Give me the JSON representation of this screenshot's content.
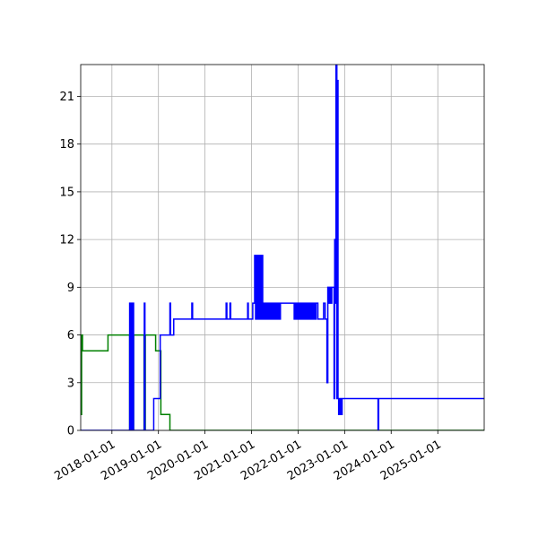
{
  "chart_data": {
    "type": "line",
    "title": "",
    "xlabel": "",
    "ylabel": "",
    "x_scale": "date",
    "xlim": [
      "2017-05-01",
      "2025-12-31"
    ],
    "ylim": [
      0,
      23
    ],
    "x_ticks": [
      "2018-01-01",
      "2019-01-01",
      "2020-01-01",
      "2021-01-01",
      "2022-01-01",
      "2023-01-01",
      "2024-01-01",
      "2025-01-01"
    ],
    "x_tick_labels": [
      "2018-01-01",
      "2019-01-01",
      "2020-01-01",
      "2021-01-01",
      "2022-01-01",
      "2023-01-01",
      "2024-01-01",
      "2025-01-01"
    ],
    "y_ticks": [
      0,
      3,
      6,
      9,
      12,
      15,
      18,
      21
    ],
    "y_tick_labels": [
      "0",
      "3",
      "6",
      "9",
      "12",
      "15",
      "18",
      "21"
    ],
    "grid": true,
    "legend": "none",
    "series": [
      {
        "color": "#008000",
        "step": true,
        "points": [
          [
            "2017-05-01",
            1
          ],
          [
            "2017-05-08",
            6
          ],
          [
            "2017-05-15",
            5
          ],
          [
            "2017-12-01",
            6
          ],
          [
            "2018-05-20",
            0
          ],
          [
            "2018-05-25",
            6
          ],
          [
            "2018-05-30",
            0
          ],
          [
            "2018-06-03",
            6
          ],
          [
            "2018-06-07",
            0
          ],
          [
            "2018-06-11",
            6
          ],
          [
            "2018-06-15",
            0
          ],
          [
            "2018-06-20",
            6
          ],
          [
            "2018-09-10",
            0
          ],
          [
            "2018-09-20",
            6
          ],
          [
            "2018-12-10",
            5
          ],
          [
            "2019-01-20",
            1
          ],
          [
            "2019-04-01",
            0
          ],
          [
            "2025-12-31",
            0
          ]
        ]
      },
      {
        "color": "#0000ff",
        "step": true,
        "points": [
          [
            "2017-05-01",
            0
          ],
          [
            "2018-05-20",
            8
          ],
          [
            "2018-05-26",
            0
          ],
          [
            "2018-06-01",
            8
          ],
          [
            "2018-06-07",
            0
          ],
          [
            "2018-06-13",
            8
          ],
          [
            "2018-06-20",
            0
          ],
          [
            "2018-09-12",
            8
          ],
          [
            "2018-09-17",
            0
          ],
          [
            "2018-11-25",
            2
          ],
          [
            "2019-01-15",
            6
          ],
          [
            "2019-04-01",
            8
          ],
          [
            "2019-04-06",
            6
          ],
          [
            "2019-05-01",
            7
          ],
          [
            "2019-09-20",
            8
          ],
          [
            "2019-09-26",
            7
          ],
          [
            "2020-06-15",
            8
          ],
          [
            "2020-06-21",
            7
          ],
          [
            "2020-07-15",
            8
          ],
          [
            "2020-07-21",
            7
          ],
          [
            "2020-12-01",
            8
          ],
          [
            "2020-12-06",
            7
          ],
          [
            "2021-01-10",
            8
          ],
          [
            "2021-01-25",
            11
          ],
          [
            "2021-02-01",
            7
          ],
          [
            "2021-02-08",
            11
          ],
          [
            "2021-02-15",
            7
          ],
          [
            "2021-02-22",
            11
          ],
          [
            "2021-03-01",
            7
          ],
          [
            "2021-03-08",
            11
          ],
          [
            "2021-03-15",
            7
          ],
          [
            "2021-03-22",
            11
          ],
          [
            "2021-03-29",
            7
          ],
          [
            "2021-04-05",
            8
          ],
          [
            "2021-04-12",
            7
          ],
          [
            "2021-04-19",
            8
          ],
          [
            "2021-04-26",
            7
          ],
          [
            "2021-05-03",
            8
          ],
          [
            "2021-05-10",
            7
          ],
          [
            "2021-05-17",
            8
          ],
          [
            "2021-05-24",
            7
          ],
          [
            "2021-06-01",
            8
          ],
          [
            "2021-06-08",
            7
          ],
          [
            "2021-06-15",
            8
          ],
          [
            "2021-06-22",
            7
          ],
          [
            "2021-07-01",
            8
          ],
          [
            "2021-07-08",
            7
          ],
          [
            "2021-07-15",
            8
          ],
          [
            "2021-07-22",
            7
          ],
          [
            "2021-08-01",
            8
          ],
          [
            "2021-08-08",
            7
          ],
          [
            "2021-08-15",
            8
          ],
          [
            "2021-12-01",
            7
          ],
          [
            "2021-12-08",
            8
          ],
          [
            "2021-12-15",
            7
          ],
          [
            "2021-12-22",
            8
          ],
          [
            "2022-01-01",
            7
          ],
          [
            "2022-01-08",
            8
          ],
          [
            "2022-01-15",
            7
          ],
          [
            "2022-01-22",
            8
          ],
          [
            "2022-02-01",
            7
          ],
          [
            "2022-02-08",
            8
          ],
          [
            "2022-02-15",
            7
          ],
          [
            "2022-02-22",
            8
          ],
          [
            "2022-03-01",
            7
          ],
          [
            "2022-03-08",
            8
          ],
          [
            "2022-03-15",
            7
          ],
          [
            "2022-03-22",
            8
          ],
          [
            "2022-04-01",
            7
          ],
          [
            "2022-04-08",
            8
          ],
          [
            "2022-04-15",
            7
          ],
          [
            "2022-04-22",
            8
          ],
          [
            "2022-05-01",
            7
          ],
          [
            "2022-05-08",
            8
          ],
          [
            "2022-05-15",
            7
          ],
          [
            "2022-05-22",
            8
          ],
          [
            "2022-06-05",
            7
          ],
          [
            "2022-07-20",
            8
          ],
          [
            "2022-08-01",
            7
          ],
          [
            "2022-08-15",
            3
          ],
          [
            "2022-08-22",
            9
          ],
          [
            "2022-09-01",
            8
          ],
          [
            "2022-09-08",
            9
          ],
          [
            "2022-09-15",
            8
          ],
          [
            "2022-09-22",
            9
          ],
          [
            "2022-10-10",
            2
          ],
          [
            "2022-10-15",
            12
          ],
          [
            "2022-10-20",
            8
          ],
          [
            "2022-10-25",
            23
          ],
          [
            "2022-11-01",
            2
          ],
          [
            "2022-11-06",
            22
          ],
          [
            "2022-11-10",
            2
          ],
          [
            "2022-11-15",
            1
          ],
          [
            "2022-11-20",
            2
          ],
          [
            "2022-11-25",
            1
          ],
          [
            "2022-12-01",
            2
          ],
          [
            "2022-12-06",
            1
          ],
          [
            "2022-12-12",
            2
          ],
          [
            "2023-09-20",
            0
          ],
          [
            "2023-09-25",
            2
          ],
          [
            "2025-12-31",
            2
          ]
        ]
      }
    ]
  }
}
